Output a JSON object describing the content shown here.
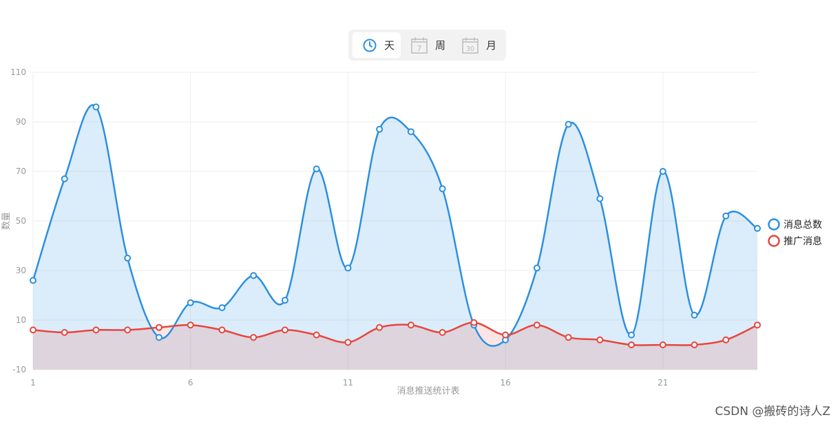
{
  "tabs": [
    {
      "label": "天",
      "icon": "clock-icon",
      "active": true
    },
    {
      "label": "周",
      "icon": "calendar-7-icon",
      "icon_text": "7",
      "active": false
    },
    {
      "label": "月",
      "icon": "calendar-30-icon",
      "icon_text": "30",
      "active": false
    }
  ],
  "colors": {
    "total": "#2b8fe0",
    "promo": "#e8453c",
    "grid": "#eeeeee",
    "axis_text": "#999999"
  },
  "chart_data": {
    "type": "area",
    "xlabel": "消息推送统计表",
    "ylabel": "数量",
    "x": [
      1,
      2,
      3,
      4,
      5,
      6,
      7,
      8,
      9,
      10,
      11,
      12,
      13,
      14,
      15,
      16,
      17,
      18,
      19,
      20,
      21,
      22,
      23,
      24
    ],
    "xticks": [
      1,
      6,
      11,
      16,
      21
    ],
    "yticks": [
      -10,
      10,
      30,
      50,
      70,
      90,
      110
    ],
    "ylim": [
      -10,
      110
    ],
    "xlim": [
      1,
      24
    ],
    "grid": true,
    "legend_position": "right",
    "series": [
      {
        "name": "消息总数",
        "color": "#2b8fe0",
        "values": [
          26,
          67,
          96,
          35,
          3,
          17,
          15,
          28,
          18,
          71,
          31,
          87,
          86,
          63,
          8,
          2,
          31,
          89,
          59,
          4,
          70,
          12,
          52,
          47
        ]
      },
      {
        "name": "推广消息",
        "color": "#e8453c",
        "values": [
          6,
          5,
          6,
          6,
          7,
          8,
          6,
          3,
          6,
          4,
          1,
          7,
          8,
          5,
          9,
          4,
          8,
          3,
          2,
          0,
          0,
          0,
          2,
          8
        ]
      }
    ]
  },
  "watermark": "CSDN @搬砖的诗人Z"
}
